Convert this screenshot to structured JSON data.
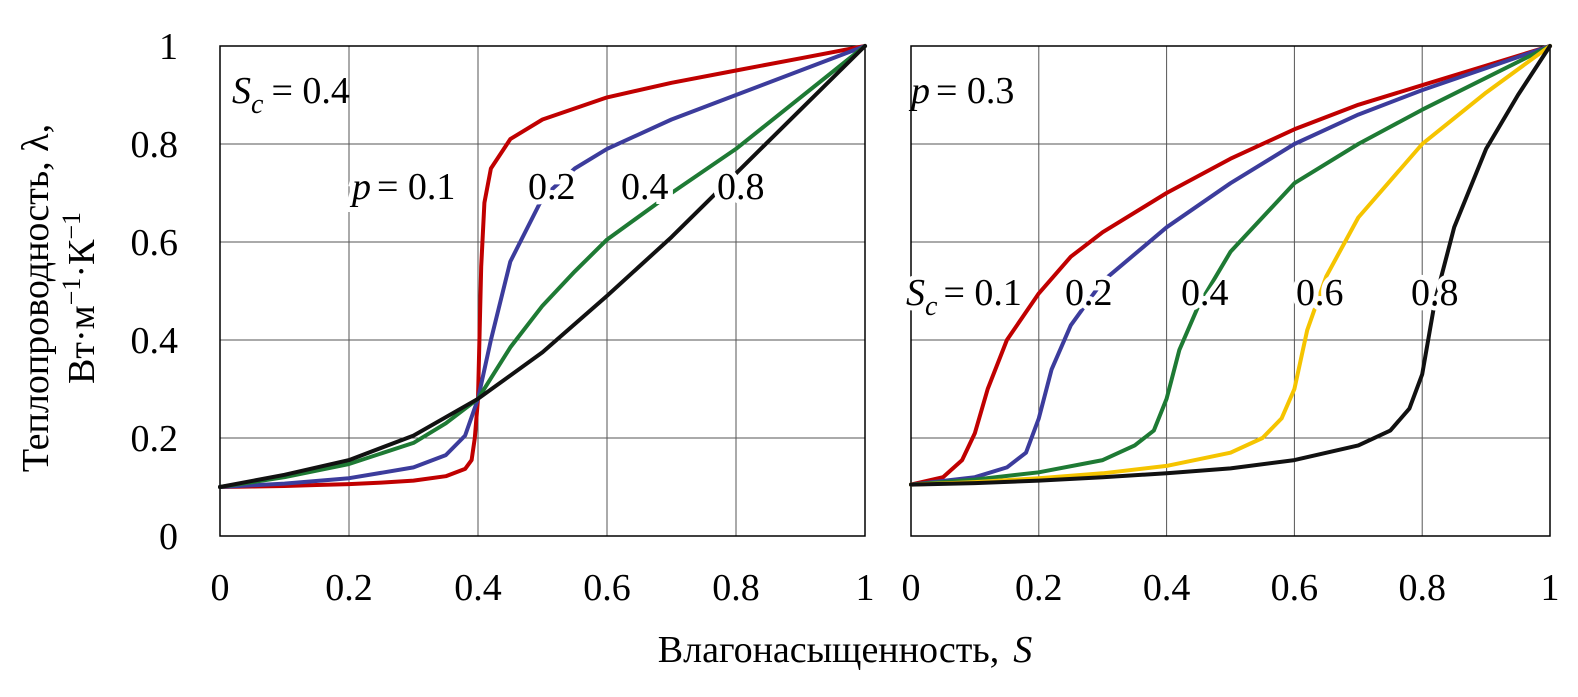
{
  "figure": {
    "ylabel_line1": "Теплопроводность, λ,",
    "ylabel_line2_prefix": "Вт·м",
    "ylabel_line2_exp1": "−1",
    "ylabel_line2_mid": "·К",
    "ylabel_line2_exp2": "−1",
    "xlabel_text": "Влагонасыщенность,",
    "xlabel_var": "S"
  },
  "chart_data": [
    {
      "type": "line",
      "title": "",
      "xlabel": "Влагонасыщенность, S",
      "ylabel": "Теплопроводность, λ, Вт·м−1·К−1",
      "xlim": [
        0,
        1
      ],
      "ylim": [
        0,
        1
      ],
      "grid": true,
      "x_ticks": [
        "0",
        "0.2",
        "0.4",
        "0.6",
        "0.8",
        "1"
      ],
      "y_ticks": [
        "0",
        "0.2",
        "0.4",
        "0.6",
        "0.8",
        "1"
      ],
      "annotation": {
        "var": "S",
        "sub": "c",
        "eq": "= 0.4"
      },
      "series_label_prefix": {
        "var": "p",
        "eq": "= 0.1"
      },
      "series": [
        {
          "label": "0.1",
          "color": "#c00000",
          "x": [
            0,
            0.05,
            0.1,
            0.15,
            0.2,
            0.25,
            0.3,
            0.35,
            0.38,
            0.39,
            0.395,
            0.4,
            0.405,
            0.41,
            0.42,
            0.45,
            0.5,
            0.6,
            0.7,
            0.8,
            0.9,
            1.0
          ],
          "y": [
            0.1,
            0.101,
            0.102,
            0.104,
            0.106,
            0.109,
            0.113,
            0.122,
            0.137,
            0.155,
            0.2,
            0.28,
            0.55,
            0.68,
            0.75,
            0.81,
            0.85,
            0.895,
            0.925,
            0.95,
            0.975,
            1.0
          ]
        },
        {
          "label": "0.2",
          "color": "#3c3c9c",
          "x": [
            0,
            0.1,
            0.2,
            0.3,
            0.35,
            0.38,
            0.4,
            0.42,
            0.45,
            0.5,
            0.55,
            0.6,
            0.7,
            0.8,
            0.9,
            1.0
          ],
          "y": [
            0.1,
            0.107,
            0.118,
            0.14,
            0.165,
            0.205,
            0.28,
            0.4,
            0.56,
            0.69,
            0.75,
            0.79,
            0.85,
            0.9,
            0.95,
            1.0
          ]
        },
        {
          "label": "0.4",
          "color": "#1e7a34",
          "x": [
            0,
            0.1,
            0.2,
            0.3,
            0.35,
            0.4,
            0.45,
            0.5,
            0.55,
            0.6,
            0.7,
            0.8,
            0.9,
            1.0
          ],
          "y": [
            0.1,
            0.12,
            0.147,
            0.19,
            0.23,
            0.28,
            0.385,
            0.47,
            0.54,
            0.605,
            0.7,
            0.79,
            0.895,
            1.0
          ]
        },
        {
          "label": "0.8",
          "color": "#111111",
          "x": [
            0,
            0.1,
            0.2,
            0.3,
            0.4,
            0.5,
            0.6,
            0.7,
            0.8,
            0.9,
            1.0
          ],
          "y": [
            0.1,
            0.125,
            0.155,
            0.205,
            0.28,
            0.375,
            0.49,
            0.61,
            0.74,
            0.87,
            1.0
          ]
        }
      ]
    },
    {
      "type": "line",
      "title": "",
      "xlabel": "Влагонасыщенность, S",
      "ylabel": "",
      "xlim": [
        0,
        1
      ],
      "ylim": [
        0,
        1
      ],
      "grid": true,
      "x_ticks": [
        "0",
        "0.2",
        "0.4",
        "0.6",
        "0.8",
        "1"
      ],
      "y_ticks": [],
      "annotation": {
        "var": "p",
        "eq": "= 0.3"
      },
      "series_label_prefix": {
        "var": "S",
        "sub": "c",
        "eq": "= 0.1"
      },
      "series": [
        {
          "label": "0.1",
          "color": "#c00000",
          "x": [
            0,
            0.05,
            0.08,
            0.1,
            0.12,
            0.15,
            0.2,
            0.25,
            0.3,
            0.4,
            0.5,
            0.6,
            0.7,
            0.8,
            0.9,
            1.0
          ],
          "y": [
            0.105,
            0.12,
            0.155,
            0.21,
            0.3,
            0.4,
            0.495,
            0.57,
            0.62,
            0.7,
            0.77,
            0.83,
            0.88,
            0.92,
            0.96,
            1.0
          ]
        },
        {
          "label": "0.2",
          "color": "#3c3c9c",
          "x": [
            0,
            0.1,
            0.15,
            0.18,
            0.2,
            0.22,
            0.25,
            0.3,
            0.4,
            0.5,
            0.6,
            0.7,
            0.8,
            0.9,
            1.0
          ],
          "y": [
            0.105,
            0.12,
            0.14,
            0.17,
            0.24,
            0.34,
            0.43,
            0.52,
            0.63,
            0.72,
            0.8,
            0.86,
            0.91,
            0.955,
            1.0
          ]
        },
        {
          "label": "0.4",
          "color": "#1e7a34",
          "x": [
            0,
            0.1,
            0.2,
            0.3,
            0.35,
            0.38,
            0.4,
            0.42,
            0.45,
            0.5,
            0.6,
            0.7,
            0.8,
            0.9,
            1.0
          ],
          "y": [
            0.105,
            0.115,
            0.13,
            0.155,
            0.185,
            0.215,
            0.28,
            0.38,
            0.47,
            0.58,
            0.72,
            0.8,
            0.87,
            0.935,
            1.0
          ]
        },
        {
          "label": "0.6",
          "color": "#f5c400",
          "x": [
            0,
            0.1,
            0.2,
            0.3,
            0.4,
            0.5,
            0.55,
            0.58,
            0.6,
            0.62,
            0.65,
            0.7,
            0.8,
            0.9,
            1.0
          ],
          "y": [
            0.105,
            0.11,
            0.118,
            0.128,
            0.143,
            0.17,
            0.2,
            0.24,
            0.3,
            0.42,
            0.53,
            0.65,
            0.8,
            0.905,
            1.0
          ]
        },
        {
          "label": "0.8",
          "color": "#111111",
          "x": [
            0,
            0.1,
            0.2,
            0.3,
            0.4,
            0.5,
            0.6,
            0.7,
            0.75,
            0.78,
            0.8,
            0.82,
            0.85,
            0.9,
            0.95,
            1.0
          ],
          "y": [
            0.105,
            0.108,
            0.113,
            0.12,
            0.128,
            0.138,
            0.155,
            0.185,
            0.215,
            0.26,
            0.33,
            0.48,
            0.63,
            0.79,
            0.9,
            1.0
          ]
        }
      ]
    }
  ]
}
